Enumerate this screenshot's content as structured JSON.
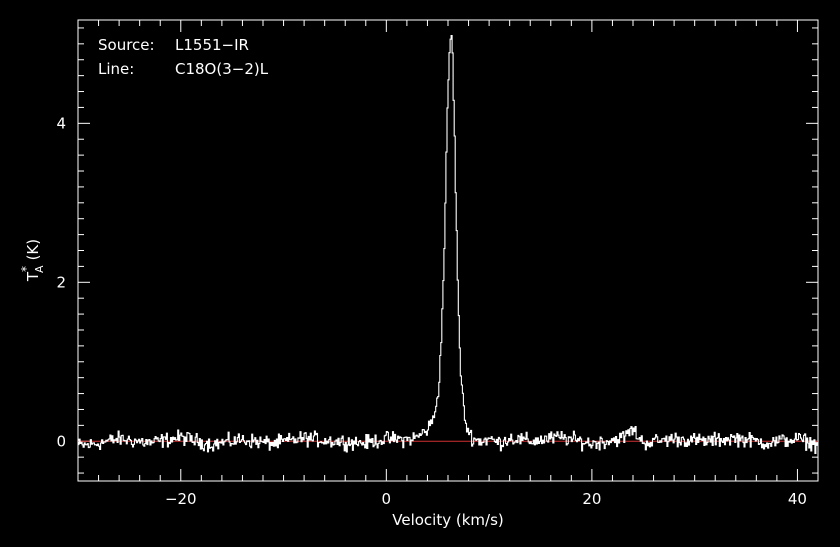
{
  "chart_data": {
    "type": "line",
    "title": "",
    "xlabel": "Velocity (km/s)",
    "ylabel": "T",
    "ylabel_subscript": "A",
    "ylabel_superscript": "*",
    "ylabel_unit": "(K)",
    "xlim": [
      -30,
      42
    ],
    "ylim": [
      -0.5,
      5.3
    ],
    "xticks": [
      -20,
      0,
      20,
      40
    ],
    "xtick_labels": [
      "−20",
      "0",
      "20",
      "40"
    ],
    "yticks": [
      0,
      2,
      4
    ],
    "ytick_labels": [
      "0",
      "2",
      "4"
    ],
    "grid": false,
    "annotations": [
      {
        "label": "Source:",
        "value": "L1551−IR"
      },
      {
        "label": "Line:",
        "value": "C18O(3−2)L"
      }
    ],
    "baseline": {
      "y": 0,
      "color": "#d03030"
    },
    "series": [
      {
        "color": "#ffffff",
        "x": [
          -29,
          -26,
          -23,
          -20,
          -17,
          -14,
          -11,
          -8,
          -5,
          -2,
          0,
          2,
          3,
          4,
          4.5,
          5,
          5.3,
          5.6,
          5.8,
          6,
          6.2,
          6.3,
          6.4,
          6.5,
          6.7,
          6.9,
          7.1,
          7.3,
          7.5,
          7.7,
          8,
          8.3,
          8.7,
          9.2,
          10,
          11,
          12,
          14,
          17,
          20,
          23,
          24,
          25,
          28,
          31,
          34,
          37,
          40,
          42
        ],
        "y": [
          -0.05,
          0.03,
          -0.02,
          0.05,
          -0.04,
          0.02,
          -0.03,
          0.04,
          0.0,
          -0.02,
          0.03,
          0.02,
          0.05,
          0.15,
          0.25,
          0.55,
          1.1,
          2.2,
          3.3,
          4.4,
          5.0,
          5.15,
          5.1,
          4.6,
          3.5,
          2.3,
          1.3,
          0.75,
          0.45,
          0.25,
          0.12,
          0.06,
          0.02,
          0.0,
          0.03,
          -0.02,
          0.04,
          0.0,
          0.05,
          -0.03,
          0.04,
          0.15,
          -0.02,
          0.03,
          0.0,
          0.04,
          -0.02,
          0.03,
          -0.05
        ]
      }
    ]
  }
}
